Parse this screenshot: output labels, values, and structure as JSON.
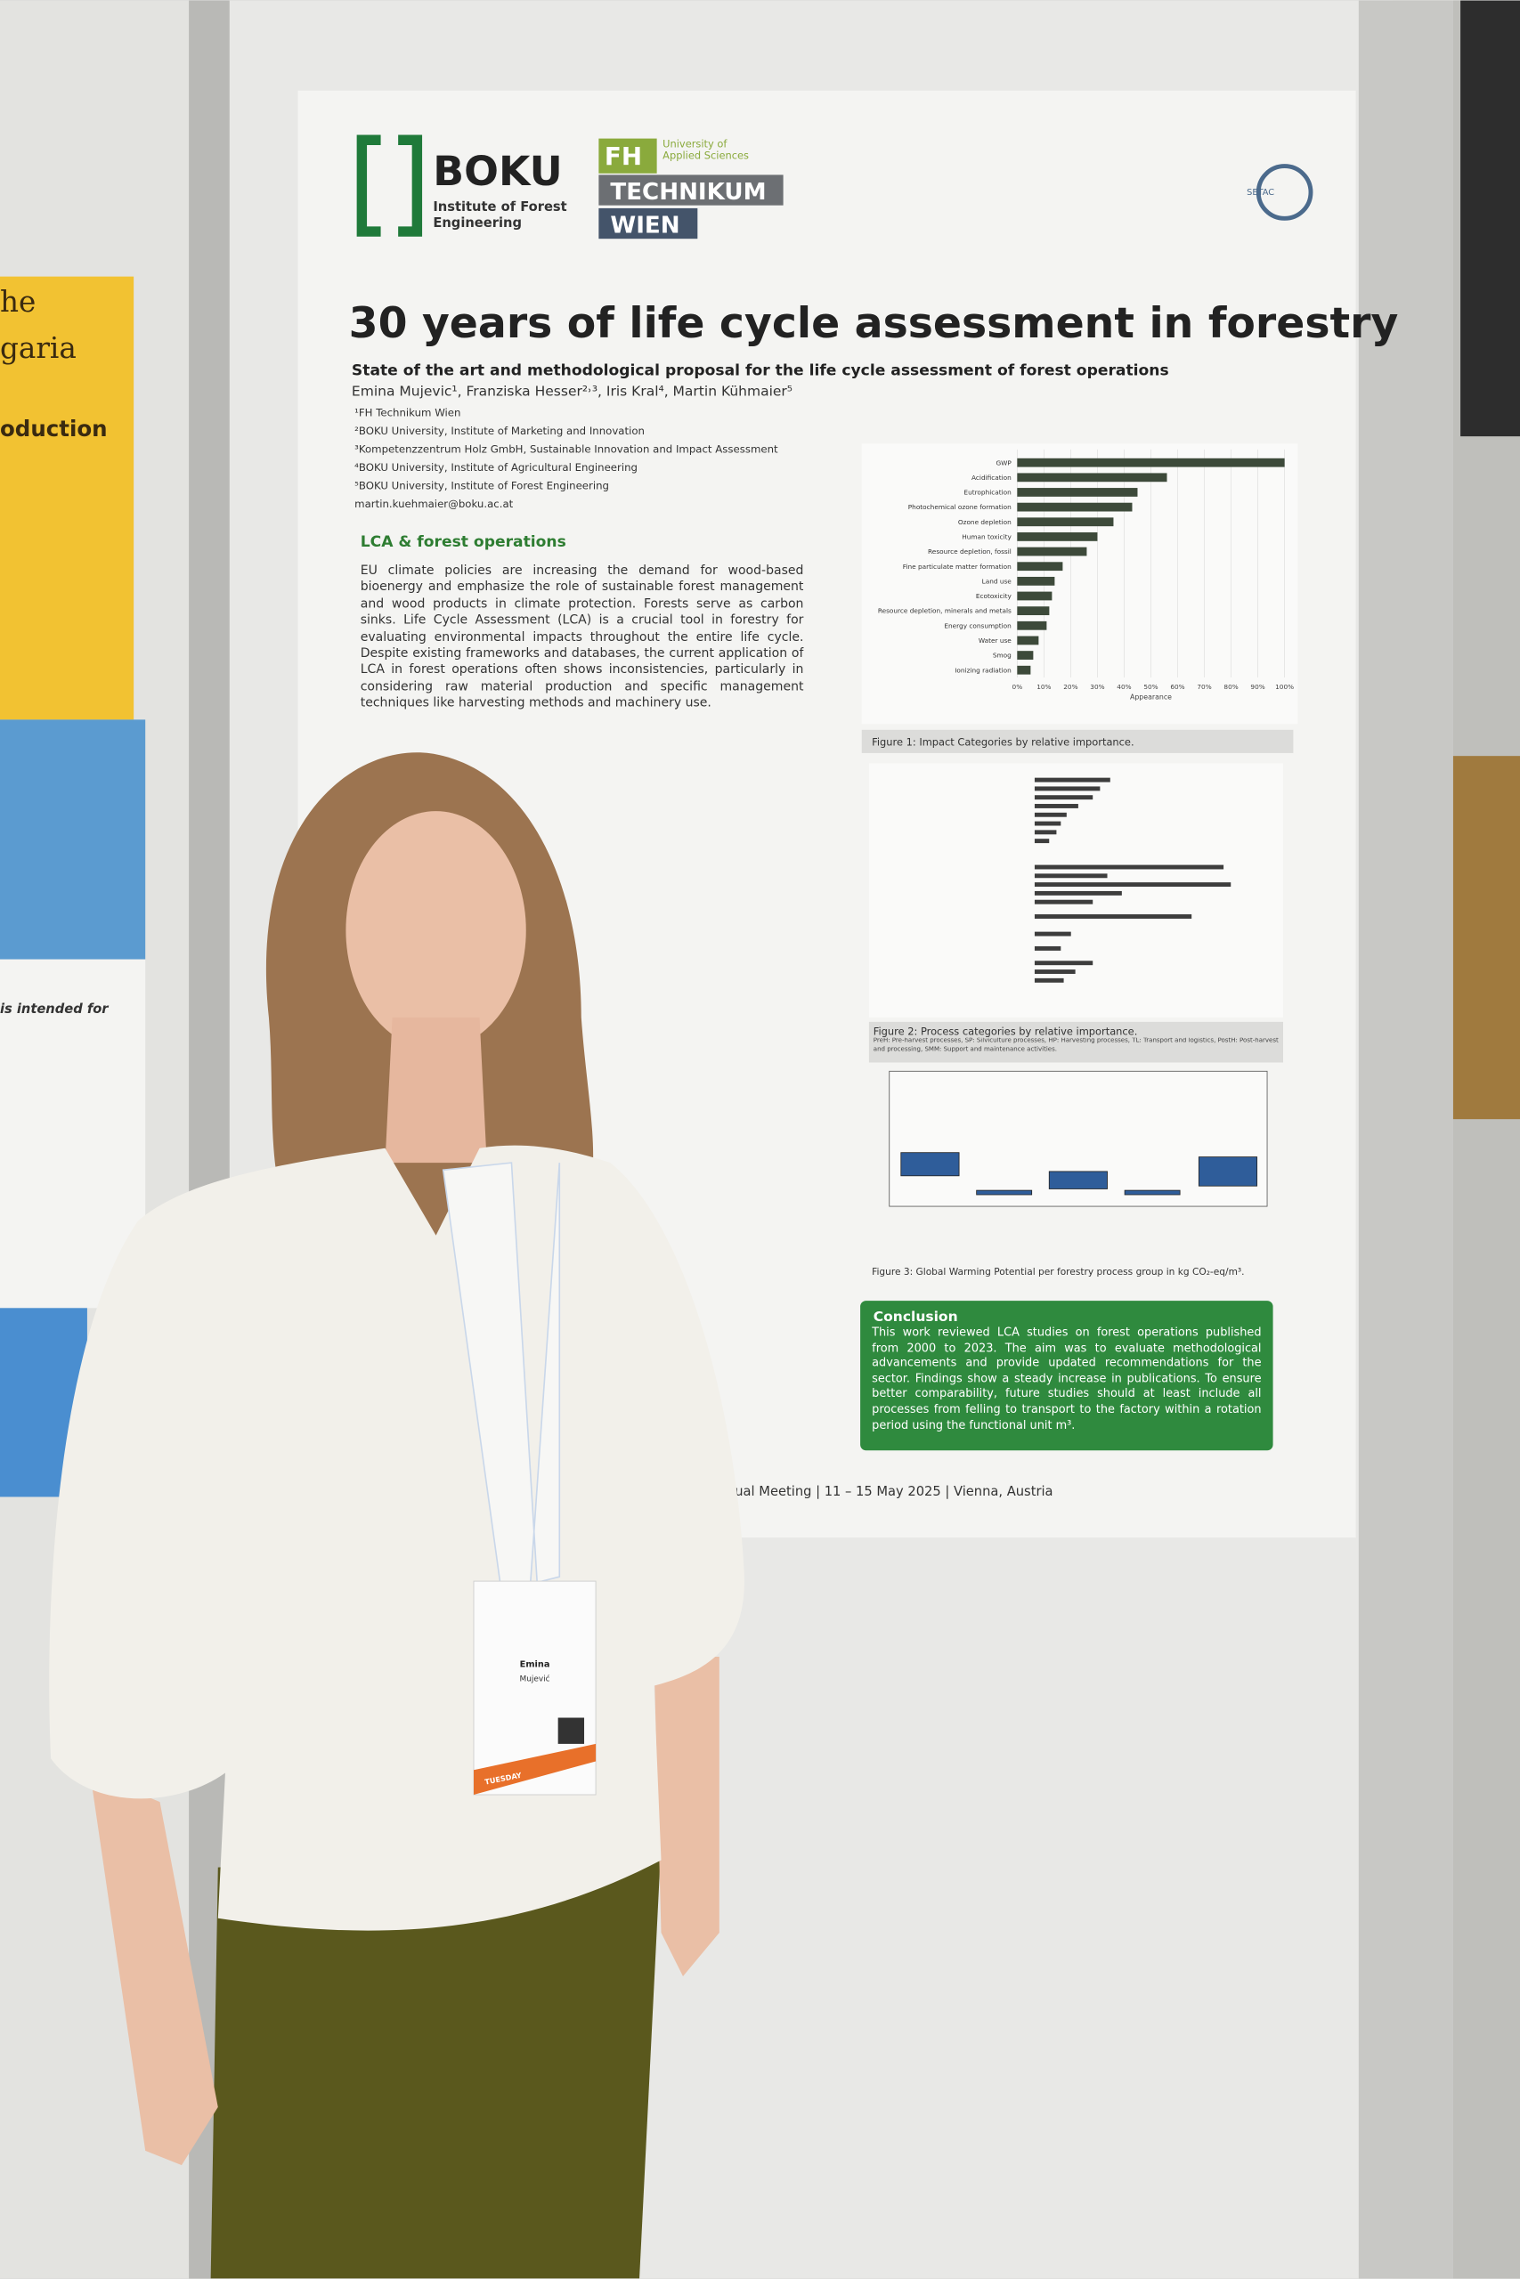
{
  "left_poster": {
    "lines": [
      "he",
      "garia",
      "oduction",
      "is intended for"
    ]
  },
  "logos": {
    "boku": "BOKU",
    "boku_sub": "Institute of Forest Engineering",
    "fh": "FH",
    "fh_sub": "University of Applied Sciences",
    "technikum": "TECHNIKUM",
    "wien": "WIEN",
    "setac": "SETAC"
  },
  "poster": {
    "title": "30 years of life cycle assessment in forestry",
    "subtitle": "State of the art and methodological proposal for the life cycle assessment of forest operations",
    "authors": "Emina Mujevic¹, Franziska Hesser²˒³, Iris Kral⁴, Martin Kühmaier⁵",
    "affiliations": [
      "¹FH Technikum Wien",
      "²BOKU University, Institute of Marketing and Innovation",
      "³Kompetenzzentrum Holz GmbH, Sustainable Innovation and Impact Assessment",
      "⁴BOKU University, Institute of Agricultural Engineering",
      "⁵BOKU University, Institute of Forest Engineering",
      "martin.kuehmaier@boku.ac.at"
    ],
    "section_heading": "LCA & forest operations",
    "paragraph": "EU climate policies are increasing the demand for wood-based bioenergy and emphasize the role of sustainable forest management and wood products in climate protection. Forests serve as carbon sinks. Life Cycle Assessment (LCA) is a crucial tool in forestry for evaluating environmental impacts throughout the entire life cycle. Despite existing frameworks and databases, the current application of LCA in forest operations often shows inconsistencies, particularly in considering raw material production and specific management techniques like harvesting methods and machinery use.",
    "figure2_caption": "Figure 2: Process categories by relative importance.",
    "figure2_legend": "PreH: Pre-harvest processes, SP: Silviculture processes, HP: Harvesting processes, TL: Transport and logistics, PostH: Post-harvest and processing, SMM: Support and maintenance activities.",
    "figure3_caption": "Figure 3: Global Warming Potential per forestry process group in kg CO₂-eq/m³.",
    "conclusion_title": "Conclusion",
    "conclusion_text": "This work reviewed LCA studies on forest operations published from 2000 to 2023. The aim was to evaluate methodological advancements and provide updated recommendations for the sector. Findings show a steady increase in publications. To ensure better comparability, future studies should at least include all processes from felling to transport to the factory within a rotation period using the functional unit m³.",
    "footer": "nual Meeting | 11 – 15 May 2025 | Vienna, Austria"
  },
  "chart_data": {
    "type": "hbar",
    "caption": "Figure 1: Impact Categories by relative importance.",
    "x_label": "Appearance",
    "color": "#3d4a3a",
    "categories": [
      "GWP",
      "Acidification",
      "Eutrophication",
      "Photochemical ozone formation",
      "Ozone depletion",
      "Human toxicity",
      "Resource depletion, fossil",
      "Fine particulate matter formation",
      "Land use",
      "Ecotoxicity",
      "Resource depletion, minerals and metals",
      "Energy consumption",
      "Water use",
      "Smog",
      "Ionizing radiation"
    ],
    "values": [
      100,
      56,
      45,
      43,
      36,
      30,
      26,
      17,
      14,
      13,
      12,
      11,
      8,
      6,
      5
    ],
    "xlim": [
      0,
      100
    ],
    "xticks": [
      {
        "value": 0,
        "label": "0%"
      },
      {
        "value": 10,
        "label": "10%"
      },
      {
        "value": 20,
        "label": "20%"
      },
      {
        "value": 30,
        "label": "30%"
      },
      {
        "value": 40,
        "label": "40%"
      },
      {
        "value": 50,
        "label": "50%"
      },
      {
        "value": 60,
        "label": "60%"
      },
      {
        "value": 70,
        "label": "70%"
      },
      {
        "value": 80,
        "label": "80%"
      },
      {
        "value": 90,
        "label": "90%"
      },
      {
        "value": 100,
        "label": "100%"
      }
    ],
    "grid": true
  },
  "badge": {
    "first_name": "Emina",
    "last_name": "Mujević",
    "day": "TUESDAY"
  }
}
